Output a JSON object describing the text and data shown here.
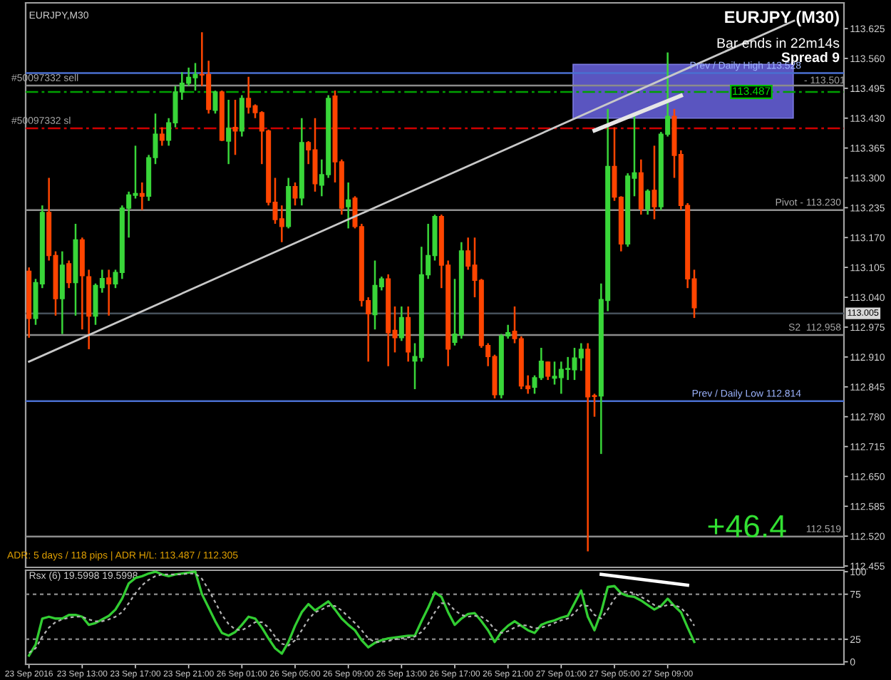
{
  "chart_data": [
    {
      "type": "candlestick",
      "title": "EURJPY,M30",
      "categories": [
        null,
        null,
        null,
        null,
        null,
        null,
        null,
        null,
        null,
        null,
        null,
        null,
        null,
        null,
        null,
        null,
        null,
        null,
        null,
        null,
        null,
        null,
        null,
        null,
        null,
        null,
        null,
        null,
        null,
        null,
        null,
        null,
        null,
        null,
        null,
        null,
        null,
        null,
        null,
        null,
        null,
        null,
        null,
        null,
        null,
        null,
        null,
        null,
        null,
        null,
        null,
        null,
        null,
        null,
        null,
        null,
        null,
        null,
        null,
        null,
        null,
        null,
        null,
        null,
        null,
        null,
        null,
        null,
        null,
        null,
        null,
        null,
        null,
        null,
        null,
        null,
        null,
        null,
        null,
        null,
        null,
        null,
        null,
        null,
        null,
        null,
        null,
        null,
        null,
        null,
        null,
        null,
        null,
        null,
        null,
        null,
        null,
        null,
        null,
        null,
        null,
        null,
        null,
        null,
        null,
        null,
        null,
        null,
        null,
        null,
        null,
        null,
        null,
        null,
        null,
        null,
        null,
        null,
        null,
        null,
        null,
        null,
        null
      ],
      "ohlc": [
        [
          113.097,
          113.105,
          112.952,
          112.994
        ],
        [
          112.994,
          113.08,
          112.98,
          113.072
        ],
        [
          113.069,
          113.24,
          113.06,
          113.225
        ],
        [
          113.225,
          113.3,
          113.12,
          113.131
        ],
        [
          113.131,
          113.14,
          113.0,
          113.037
        ],
        [
          113.037,
          113.14,
          112.96,
          113.11
        ],
        [
          113.113,
          113.12,
          113.06,
          113.072
        ],
        [
          113.072,
          113.2,
          113.0,
          113.165
        ],
        [
          113.165,
          113.17,
          112.97,
          113.087
        ],
        [
          113.085,
          113.1,
          112.927,
          112.999
        ],
        [
          112.999,
          113.07,
          112.98,
          113.066
        ],
        [
          113.061,
          113.1,
          113.05,
          113.081
        ],
        [
          113.082,
          113.1,
          113.0,
          113.069
        ],
        [
          113.069,
          113.1,
          113.06,
          113.094
        ],
        [
          113.094,
          113.24,
          113.08,
          113.234
        ],
        [
          113.234,
          113.27,
          113.17,
          113.263
        ],
        [
          113.262,
          113.37,
          113.255,
          113.266
        ],
        [
          113.266,
          113.29,
          113.23,
          113.26
        ],
        [
          113.26,
          113.35,
          113.25,
          113.344
        ],
        [
          113.344,
          113.44,
          113.33,
          113.395
        ],
        [
          113.395,
          113.41,
          113.37,
          113.382
        ],
        [
          113.382,
          113.43,
          113.37,
          113.42
        ],
        [
          113.42,
          113.5,
          113.41,
          113.487
        ],
        [
          113.487,
          113.53,
          113.47,
          113.506
        ],
        [
          113.506,
          113.54,
          113.5,
          113.519
        ],
        [
          113.518,
          113.55,
          113.49,
          113.525
        ],
        [
          113.525,
          113.617,
          113.5,
          113.524
        ],
        [
          113.525,
          113.555,
          113.44,
          113.449
        ],
        [
          113.447,
          113.49,
          113.44,
          113.487
        ],
        [
          113.487,
          113.49,
          113.38,
          113.382
        ],
        [
          113.38,
          113.47,
          113.33,
          113.408
        ],
        [
          113.41,
          113.47,
          113.35,
          113.402
        ],
        [
          113.402,
          113.48,
          113.39,
          113.473
        ],
        [
          113.473,
          113.52,
          113.44,
          113.454
        ],
        [
          113.457,
          113.46,
          113.43,
          113.442
        ],
        [
          113.442,
          113.445,
          113.33,
          113.402
        ],
        [
          113.402,
          113.405,
          113.24,
          113.247
        ],
        [
          113.247,
          113.3,
          113.2,
          113.209
        ],
        [
          113.211,
          113.24,
          113.16,
          113.194
        ],
        [
          113.194,
          113.3,
          113.19,
          113.281
        ],
        [
          113.281,
          113.29,
          113.24,
          113.256
        ],
        [
          113.256,
          113.43,
          113.24,
          113.377
        ],
        [
          113.377,
          113.38,
          113.33,
          113.361
        ],
        [
          113.361,
          113.43,
          113.27,
          113.287
        ],
        [
          113.284,
          113.34,
          113.26,
          113.307
        ],
        [
          113.307,
          113.48,
          113.3,
          113.473
        ],
        [
          113.478,
          113.49,
          113.29,
          113.335
        ],
        [
          113.335,
          113.34,
          113.22,
          113.234
        ],
        [
          113.237,
          113.29,
          113.19,
          113.252
        ],
        [
          113.256,
          113.26,
          113.19,
          113.194
        ],
        [
          113.194,
          113.2,
          113.02,
          113.033
        ],
        [
          113.033,
          113.04,
          112.9,
          113.004
        ],
        [
          113.002,
          113.12,
          112.97,
          113.066
        ],
        [
          113.063,
          113.085,
          113.055,
          113.08
        ],
        [
          113.08,
          113.09,
          112.89,
          112.963
        ],
        [
          112.968,
          113.02,
          112.92,
          112.952
        ],
        [
          112.952,
          113.02,
          112.945,
          112.996
        ],
        [
          112.996,
          113.02,
          112.9,
          112.921
        ],
        [
          112.901,
          112.94,
          112.84,
          112.911
        ],
        [
          112.909,
          113.15,
          112.9,
          113.089
        ],
        [
          113.089,
          113.2,
          113.08,
          113.131
        ],
        [
          113.131,
          113.22,
          113.12,
          113.216
        ],
        [
          113.216,
          113.22,
          113.06,
          113.11
        ],
        [
          113.11,
          113.12,
          112.89,
          112.927
        ],
        [
          112.942,
          113.08,
          112.935,
          112.96
        ],
        [
          112.958,
          113.16,
          112.95,
          113.141
        ],
        [
          113.141,
          113.17,
          113.1,
          113.108
        ],
        [
          113.11,
          113.17,
          113.04,
          113.077
        ],
        [
          113.077,
          113.08,
          112.93,
          112.935
        ],
        [
          112.935,
          112.94,
          112.89,
          112.911
        ],
        [
          112.911,
          112.915,
          112.82,
          112.828
        ],
        [
          112.828,
          112.96,
          112.82,
          112.956
        ],
        [
          112.956,
          112.98,
          112.95,
          112.963
        ],
        [
          112.966,
          113.02,
          112.94,
          112.95
        ],
        [
          112.95,
          112.955,
          112.84,
          112.847
        ],
        [
          112.847,
          112.87,
          112.83,
          112.841
        ],
        [
          112.844,
          112.87,
          112.83,
          112.865
        ],
        [
          112.865,
          112.93,
          112.86,
          112.901
        ],
        [
          112.899,
          112.9,
          112.86,
          112.868
        ],
        [
          112.864,
          112.9,
          112.85,
          112.868
        ],
        [
          112.865,
          112.9,
          112.83,
          112.883
        ],
        [
          112.883,
          112.91,
          112.86,
          112.885
        ],
        [
          112.882,
          112.93,
          112.86,
          112.908
        ],
        [
          112.908,
          112.94,
          112.88,
          112.927
        ],
        [
          112.927,
          112.94,
          112.487,
          112.823
        ],
        [
          112.826,
          112.83,
          112.78,
          112.824
        ],
        [
          112.825,
          113.07,
          112.699,
          113.035
        ],
        [
          113.033,
          113.45,
          113.01,
          113.325
        ],
        [
          113.325,
          113.41,
          113.25,
          113.258
        ],
        [
          113.258,
          113.26,
          113.14,
          113.156
        ],
        [
          113.156,
          113.31,
          113.15,
          113.304
        ],
        [
          113.299,
          113.44,
          113.26,
          113.311
        ],
        [
          113.311,
          113.34,
          113.22,
          113.232
        ],
        [
          113.232,
          113.275,
          113.22,
          113.271
        ],
        [
          113.273,
          113.37,
          113.21,
          113.237
        ],
        [
          113.237,
          113.4,
          113.23,
          113.395
        ],
        [
          113.395,
          113.573,
          113.39,
          113.434
        ],
        [
          113.434,
          113.45,
          113.3,
          113.349
        ],
        [
          113.351,
          113.36,
          113.23,
          113.24
        ],
        [
          113.24,
          113.245,
          113.06,
          113.08
        ],
        [
          113.08,
          113.1,
          112.995,
          113.017
        ],
        null,
        null,
        null,
        null,
        null,
        null,
        null,
        null,
        null,
        null,
        null,
        null,
        null,
        null,
        null,
        null,
        null,
        null,
        null,
        null,
        null,
        null
      ],
      "colors": [
        "#ff4500",
        "#39d639",
        "#39d639",
        "#ff4500",
        "#ff4500",
        "#39d639",
        "#ff4500",
        "#39d639",
        "#ff4500",
        "#ff4500",
        "#39d639",
        "#39d639",
        "#ff4500",
        "#39d639",
        "#39d639",
        "#39d639",
        "#39d639",
        "#ff4500",
        "#39d639",
        "#39d639",
        "#ff4500",
        "#39d639",
        "#39d639",
        "#39d639",
        "#39d639",
        "#39d639",
        "#ff4500",
        "#ff4500",
        "#39d639",
        "#ff4500",
        "#39d639",
        "#ff4500",
        "#39d639",
        "#ff4500",
        "#ff4500",
        "#ff4500",
        "#ff4500",
        "#ff4500",
        "#ff4500",
        "#39d639",
        "#ff4500",
        "#39d639",
        "#ff4500",
        "#ff4500",
        "#39d639",
        "#39d639",
        "#ff4500",
        "#ff4500",
        "#39d639",
        "#ff4500",
        "#ff4500",
        "#ff4500",
        "#39d639",
        "#39d639",
        "#ff4500",
        "#ff4500",
        "#39d639",
        "#ff4500",
        "#39d639",
        "#39d639",
        "#39d639",
        "#39d639",
        "#ff4500",
        "#ff4500",
        "#39d639",
        "#39d639",
        "#ff4500",
        "#ff4500",
        "#ff4500",
        "#ff4500",
        "#ff4500",
        "#39d639",
        "#39d639",
        "#ff4500",
        "#ff4500",
        "#ff4500",
        "#39d639",
        "#39d639",
        "#ff4500",
        "#39d639",
        "#39d639",
        "#39d639",
        "#39d639",
        "#39d639",
        "#ff4500",
        "#ff4500",
        "#39d639",
        "#39d639",
        "#ff4500",
        "#ff4500",
        "#39d639",
        "#39d639",
        "#ff4500",
        "#39d639",
        "#ff4500",
        "#39d639",
        "#39d639",
        "#ff4500",
        "#ff4500",
        "#ff4500",
        "#ff4500",
        null,
        null,
        null,
        null,
        null,
        null,
        null,
        null,
        null,
        null,
        null,
        null,
        null,
        null,
        null,
        null,
        null,
        null,
        null,
        null,
        null,
        null
      ],
      "series": [
        {
          "type": "line",
          "values": [
            112.9,
            null,
            null,
            null,
            null,
            null,
            null,
            null,
            null,
            null,
            null,
            null,
            null,
            null,
            null,
            null,
            null,
            null,
            null,
            null,
            null,
            null,
            null,
            null,
            null,
            null,
            null,
            null,
            null,
            null,
            null,
            null,
            null,
            null,
            null,
            null,
            null,
            null,
            null,
            null,
            null,
            null,
            null,
            null,
            null,
            null,
            null,
            null,
            null,
            null,
            null,
            null,
            null,
            null,
            null,
            null,
            null,
            null,
            null,
            null,
            null,
            null,
            null,
            null,
            null,
            null,
            null,
            null,
            null,
            null,
            null,
            null,
            null,
            null,
            null,
            null,
            null,
            null,
            null,
            null,
            null,
            null,
            null,
            null,
            null,
            null,
            null,
            null,
            null,
            null,
            null,
            null,
            null,
            null,
            null,
            null,
            null,
            null,
            null,
            null,
            113.545,
            null,
            null,
            null,
            null,
            null,
            null,
            null,
            null,
            null,
            null,
            null,
            null,
            null,
            null,
            113.642,
            null,
            null,
            null,
            null,
            null,
            null,
            null
          ],
          "color": "#c8c8c8"
        },
        {
          "type": "line",
          "values": [
            null,
            null,
            null,
            null,
            null,
            null,
            null,
            null,
            null,
            null,
            null,
            null,
            null,
            null,
            null,
            null,
            null,
            null,
            null,
            null,
            null,
            null,
            null,
            null,
            null,
            null,
            null,
            null,
            null,
            null,
            null,
            null,
            null,
            null,
            null,
            null,
            null,
            null,
            null,
            null,
            null,
            null,
            null,
            null,
            null,
            null,
            null,
            null,
            null,
            null,
            null,
            null,
            null,
            null,
            null,
            null,
            null,
            null,
            null,
            null,
            null,
            null,
            null,
            null,
            null,
            null,
            null,
            null,
            null,
            null,
            null,
            null,
            null,
            null,
            null,
            null,
            null,
            null,
            null,
            null,
            null,
            null,
            null,
            null,
            null,
            113.403,
            null,
            null,
            null,
            null,
            null,
            null,
            null,
            null,
            null,
            null,
            null,
            null,
            113.479,
            null,
            null,
            null,
            null,
            null,
            null,
            null,
            null,
            null,
            null,
            null,
            null,
            null,
            null,
            null,
            null,
            null,
            null,
            null,
            null,
            null,
            null,
            null,
            null
          ],
          "color": "#e6e6e6"
        }
      ],
      "ylim": [
        112.452,
        113.681
      ],
      "yticks": [
        113.625,
        {
          "value": 113.56,
          "label": "113.560"
        },
        113.495,
        {
          "value": 113.43,
          "label": "113.430"
        },
        113.365,
        {
          "value": 113.3,
          "label": "113.300"
        },
        113.235,
        {
          "value": 113.17,
          "label": "113.170"
        },
        113.105,
        {
          "value": 113.04,
          "label": "113.040"
        },
        112.975,
        {
          "value": 112.91,
          "label": "112.910"
        },
        112.845,
        {
          "value": 112.78,
          "label": "112.780"
        },
        112.715,
        {
          "value": 112.65,
          "label": "112.650"
        },
        112.585,
        {
          "value": 112.52,
          "label": "112.520"
        },
        112.455
      ],
      "tick_labels": "y",
      "bands": [
        {
          "axis": "y",
          "from": 113.43,
          "to": 113.547,
          "color": "#5a55c0"
        }
      ],
      "ref_lines": [
        {
          "axis": "y",
          "value": 113.528,
          "label": "Prev / Daily High 113.528",
          "color": "#4a6fd0"
        },
        {
          "axis": "y",
          "value": 113.501,
          "label": "#50097332 sell",
          "color": "#8c8c8c"
        },
        {
          "axis": "y",
          "value": 113.487,
          "label": "113.487",
          "color": "#00a000",
          "line_style": "dashed"
        },
        {
          "axis": "y",
          "value": 113.408,
          "label": "#50097332 sl",
          "color": "#d00000",
          "line_style": "dashed"
        },
        {
          "axis": "y",
          "value": 113.23,
          "label": "Pivot - 113.230",
          "color": "#909090"
        },
        {
          "axis": "y",
          "value": 113.005,
          "label": "113.005",
          "color": "#46505a"
        },
        {
          "axis": "y",
          "value": 112.958,
          "label": "S2  112.958",
          "color": "#8c8c8c"
        },
        {
          "axis": "y",
          "value": 112.814,
          "label": "Prev / Daily Low 112.814",
          "color": "#4a6fd0"
        },
        {
          "axis": "y",
          "value": 112.519,
          "label": "112.519",
          "color": "#8c8c8c"
        }
      ],
      "annotations": [
        "EURJPY (M30)",
        "Bar ends in 22m14s",
        "Spread 9",
        "+46.4",
        "ADR: 5 days / 118 pips | ADR H/L: 113.487 / 112.305",
        {
          "text": "- 113.501",
          "y": 113.501
        }
      ]
    },
    {
      "type": "line",
      "title": "Rsx (6) 19.5998 19.5998",
      "categories": [
        "23 Sep 2016",
        null,
        null,
        null,
        null,
        null,
        null,
        null,
        "23 Sep 13:00",
        null,
        null,
        null,
        null,
        null,
        null,
        null,
        "23 Sep 17:00",
        null,
        null,
        null,
        null,
        null,
        null,
        null,
        "23 Sep 21:00",
        null,
        null,
        null,
        null,
        null,
        null,
        null,
        "26 Sep 01:00",
        null,
        null,
        null,
        null,
        null,
        null,
        null,
        "26 Sep 05:00",
        null,
        null,
        null,
        null,
        null,
        null,
        null,
        "26 Sep 09:00",
        null,
        null,
        null,
        null,
        null,
        null,
        null,
        "26 Sep 13:00",
        null,
        null,
        null,
        null,
        null,
        null,
        null,
        "26 Sep 17:00",
        null,
        null,
        null,
        null,
        null,
        null,
        null,
        "26 Sep 21:00",
        null,
        null,
        null,
        null,
        null,
        null,
        null,
        "27 Sep 01:00",
        null,
        null,
        null,
        null,
        null,
        null,
        null,
        "27 Sep 05:00",
        null,
        null,
        null,
        null,
        null,
        null,
        null,
        "27 Sep 09:00",
        null,
        null,
        null,
        null,
        null,
        null,
        null,
        null,
        null,
        null,
        null,
        null,
        null,
        null,
        null,
        null,
        null,
        null,
        null,
        null,
        null,
        null,
        null,
        null,
        null,
        null
      ],
      "series": [
        {
          "values": [
            7,
            19,
            48,
            50,
            48,
            48,
            52,
            52,
            50,
            41,
            43,
            47,
            51,
            58,
            70,
            87,
            93,
            95,
            98,
            100,
            97,
            95,
            97,
            98,
            99,
            100,
            75,
            60,
            45,
            32,
            29,
            33,
            41,
            50,
            48,
            38,
            26,
            15,
            9,
            22,
            40,
            55,
            64,
            57,
            62,
            67,
            58,
            48,
            41,
            35,
            24,
            16,
            21,
            24,
            26,
            27,
            28,
            29,
            29,
            45,
            60,
            77,
            72,
            55,
            41,
            48,
            53,
            54,
            45,
            35,
            22,
            33,
            40,
            45,
            40,
            35,
            32,
            41,
            44,
            46,
            49,
            51,
            65,
            79,
            50,
            35,
            55,
            83,
            84,
            76,
            73,
            72,
            68,
            63,
            58,
            62,
            70,
            62,
            55,
            38,
            22,
            null,
            null,
            null,
            null,
            null,
            null,
            null,
            null,
            null,
            null,
            null,
            null,
            null,
            null,
            null,
            null,
            null,
            null,
            null,
            null,
            null,
            null
          ],
          "color": "#32cd32"
        },
        {
          "values": [
            10,
            15,
            28,
            38,
            44,
            47,
            49,
            50,
            50,
            47,
            45,
            45,
            47,
            50,
            55,
            65,
            76,
            85,
            91,
            95,
            97,
            97,
            97,
            97,
            98,
            98,
            92,
            80,
            66,
            52,
            42,
            36,
            35,
            39,
            44,
            44,
            38,
            28,
            20,
            18,
            24,
            35,
            47,
            55,
            58,
            62,
            62,
            57,
            50,
            43,
            35,
            26,
            22,
            22,
            23,
            25,
            26,
            27,
            28,
            33,
            42,
            55,
            65,
            65,
            57,
            52,
            50,
            51,
            50,
            45,
            36,
            32,
            34,
            38,
            41,
            40,
            37,
            38,
            40,
            43,
            46,
            48,
            54,
            63,
            62,
            52,
            48,
            58,
            70,
            77,
            78,
            76,
            72,
            68,
            63,
            61,
            63,
            63,
            60,
            52,
            40,
            null,
            null,
            null,
            null,
            null,
            null,
            null,
            null,
            null,
            null,
            null,
            null,
            null,
            null,
            null,
            null,
            null,
            null,
            null,
            null,
            null,
            null
          ],
          "color": "#b4b4b4",
          "line_style": "dashed"
        },
        {
          "values": [
            null,
            null,
            null,
            null,
            null,
            null,
            null,
            null,
            null,
            null,
            null,
            null,
            null,
            null,
            null,
            null,
            null,
            null,
            null,
            null,
            null,
            null,
            null,
            null,
            null,
            null,
            null,
            null,
            null,
            null,
            null,
            null,
            null,
            null,
            null,
            null,
            null,
            null,
            null,
            null,
            null,
            null,
            null,
            null,
            null,
            null,
            null,
            null,
            null,
            null,
            null,
            null,
            null,
            null,
            null,
            null,
            null,
            null,
            null,
            null,
            null,
            null,
            null,
            null,
            null,
            null,
            null,
            null,
            null,
            null,
            null,
            null,
            null,
            null,
            null,
            null,
            null,
            null,
            null,
            null,
            null,
            null,
            null,
            null,
            null,
            null,
            97,
            null,
            null,
            null,
            null,
            null,
            null,
            null,
            null,
            null,
            null,
            null,
            null,
            85,
            null,
            null,
            null,
            null,
            null,
            null,
            null,
            null,
            null,
            null,
            null,
            null,
            null,
            null,
            null,
            null,
            null,
            null,
            null,
            null,
            null,
            null,
            null
          ],
          "color": "#ffffff"
        }
      ],
      "ylim": [
        -2.8,
        101.6
      ],
      "yticks": [
        0,
        25,
        75,
        100
      ],
      "ref_lines": [
        {
          "axis": "y",
          "value": 25,
          "color": "#808080",
          "line_style": "dotted"
        },
        {
          "axis": "y",
          "value": 75,
          "color": "#808080",
          "line_style": "dotted"
        }
      ]
    }
  ]
}
